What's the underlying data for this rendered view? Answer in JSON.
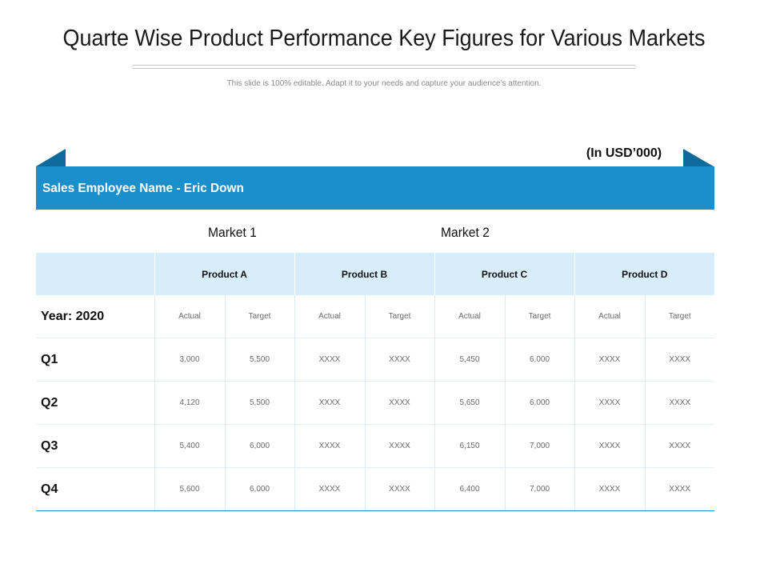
{
  "title": "Quarte Wise Product Performance Key Figures for Various Markets",
  "subtitle": "This slide is 100% editable. Adapt it to your needs and capture your audience’s attention.",
  "unit_label": "(In USD’000)",
  "employee_label": "Sales Employee Name - Eric Down",
  "markets": [
    "Market 1",
    "Market 2"
  ],
  "products": [
    "Product A",
    "Product B",
    "Product C",
    "Product D"
  ],
  "year_label": "Year: 2020",
  "measures": [
    "Actual",
    "Target",
    "Actual",
    "Target",
    "Actual",
    "Target",
    "Actual",
    "Target"
  ],
  "rows": [
    {
      "label": "Q1",
      "values": [
        "3,000",
        "5,500",
        "XXXX",
        "XXXX",
        "5,450",
        "6,000",
        "XXXX",
        "XXXX"
      ]
    },
    {
      "label": "Q2",
      "values": [
        "4,120",
        "5,500",
        "XXXX",
        "XXXX",
        "5,650",
        "6,000",
        "XXXX",
        "XXXX"
      ]
    },
    {
      "label": "Q3",
      "values": [
        "5,400",
        "6,000",
        "XXXX",
        "XXXX",
        "6,150",
        "7,000",
        "XXXX",
        "XXXX"
      ]
    },
    {
      "label": "Q4",
      "values": [
        "5,600",
        "6,000",
        "XXXX",
        "XXXX",
        "6,400",
        "7,000",
        "XXXX",
        "XXXX"
      ]
    }
  ],
  "colors": {
    "accent": "#1b8fcc",
    "accent_dark": "#0f6a9c",
    "header_fill": "#d7eefa"
  }
}
